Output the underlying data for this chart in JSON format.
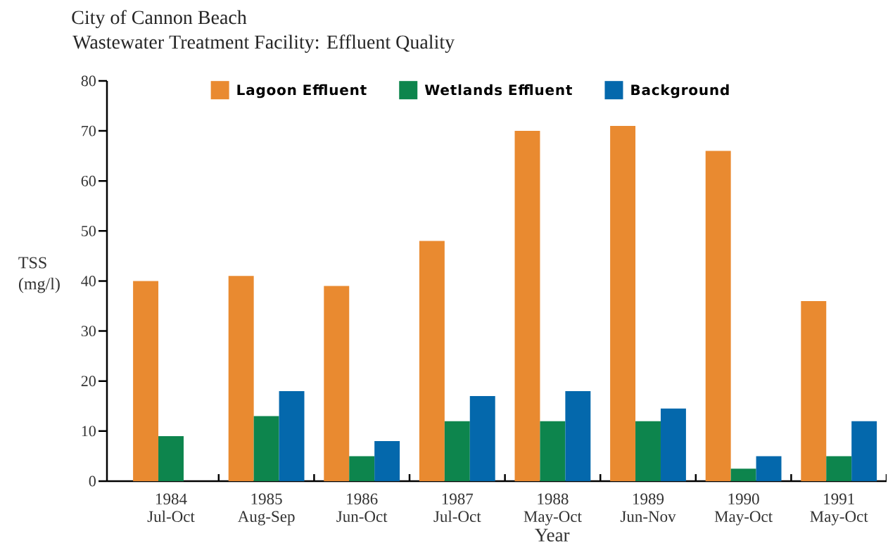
{
  "chart_data": {
    "type": "bar",
    "title": "City of Cannon Beach",
    "subtitle": "Wastewater Treatment Facility: Effluent Quality",
    "xlabel": "Year",
    "ylabel": "TSS (mg/l)",
    "categories": [
      "1984 Jul-Oct",
      "1985 Aug-Sep",
      "1986 Jun-Oct",
      "1987 Jul-Oct",
      "1988 May-Oct",
      "1989 Jun-Nov",
      "1990 May-Oct",
      "1991 May-Oct"
    ],
    "series": [
      {
        "name": "Lagoon Effluent",
        "color": "#e98a30",
        "values": [
          40,
          41,
          39,
          48,
          70,
          71,
          66,
          36
        ]
      },
      {
        "name": "Wetlands Effluent",
        "color": "#0d854d",
        "values": [
          9,
          13,
          5,
          12,
          12,
          12,
          2.5,
          5
        ]
      },
      {
        "name": "Background",
        "color": "#0468ac",
        "values": [
          null,
          18,
          8,
          17,
          18,
          14.5,
          5,
          12
        ]
      }
    ],
    "ylim": [
      0,
      80
    ],
    "yticks": [
      0,
      10,
      20,
      30,
      40,
      50,
      60,
      70,
      80
    ],
    "legend": "top"
  }
}
